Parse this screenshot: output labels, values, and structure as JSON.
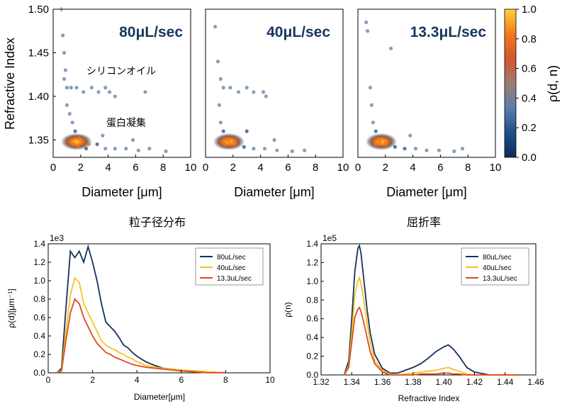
{
  "colorbar": {
    "label": "ρ(d, n)",
    "ticks": [
      "0.0",
      "0.2",
      "0.4",
      "0.6",
      "0.8",
      "1.0"
    ],
    "colors": [
      "#0b2d5b",
      "#1f4f8a",
      "#5d7eaa",
      "#9a7e73",
      "#d4562a",
      "#f27a1c",
      "#ffd13a"
    ]
  },
  "chart_data": [
    {
      "type": "scatter",
      "title": "80μL/sec",
      "xlabel": "Diameter [μm]",
      "ylabel": "Refractive Index",
      "xlim": [
        0,
        10
      ],
      "ylim": [
        1.33,
        1.5
      ],
      "xticks": [
        "0",
        "2",
        "4",
        "6",
        "8",
        "10"
      ],
      "yticks": [
        "1.35",
        "1.40",
        "1.45",
        "1.50"
      ],
      "annotations": [
        "シリコンオイル",
        "蛋白凝集"
      ],
      "points": [
        [
          0.6,
          1.5
        ],
        [
          0.7,
          1.47
        ],
        [
          0.8,
          1.45
        ],
        [
          0.9,
          1.43
        ],
        [
          0.8,
          1.42
        ],
        [
          1.0,
          1.41
        ],
        [
          1.3,
          1.41
        ],
        [
          1.7,
          1.41
        ],
        [
          2.2,
          1.405
        ],
        [
          2.8,
          1.41
        ],
        [
          3.3,
          1.405
        ],
        [
          3.8,
          1.41
        ],
        [
          4.1,
          1.405
        ],
        [
          4.5,
          1.4
        ],
        [
          6.7,
          1.405
        ],
        [
          1.0,
          1.39
        ],
        [
          1.2,
          1.38
        ],
        [
          1.4,
          1.37
        ],
        [
          1.6,
          1.36
        ],
        [
          2.0,
          1.35
        ],
        [
          2.6,
          1.345
        ],
        [
          3.2,
          1.345
        ],
        [
          3.8,
          1.34
        ],
        [
          4.5,
          1.34
        ],
        [
          5.3,
          1.34
        ],
        [
          6.2,
          1.338
        ],
        [
          7.0,
          1.34
        ],
        [
          8.2,
          1.337
        ],
        [
          5.8,
          1.35
        ],
        [
          3.6,
          1.355
        ],
        [
          1.5,
          1.345
        ],
        [
          1.8,
          1.343
        ],
        [
          2.4,
          1.34
        ],
        [
          1.9,
          1.352
        ]
      ]
    },
    {
      "type": "scatter",
      "title": "40μL/sec",
      "xlabel": "Diameter [μm]",
      "xlim": [
        0,
        10
      ],
      "ylim": [
        1.33,
        1.5
      ],
      "xticks": [
        "0",
        "2",
        "4",
        "6",
        "8",
        "10"
      ],
      "points": [
        [
          0.7,
          1.48
        ],
        [
          0.9,
          1.44
        ],
        [
          1.1,
          1.42
        ],
        [
          1.3,
          1.41
        ],
        [
          1.8,
          1.41
        ],
        [
          2.4,
          1.405
        ],
        [
          3.0,
          1.41
        ],
        [
          3.5,
          1.405
        ],
        [
          4.2,
          1.405
        ],
        [
          4.4,
          1.4
        ],
        [
          1.0,
          1.39
        ],
        [
          1.1,
          1.37
        ],
        [
          1.3,
          1.36
        ],
        [
          1.6,
          1.35
        ],
        [
          2.1,
          1.345
        ],
        [
          2.8,
          1.342
        ],
        [
          3.5,
          1.34
        ],
        [
          4.3,
          1.34
        ],
        [
          5.2,
          1.338
        ],
        [
          6.3,
          1.337
        ],
        [
          7.2,
          1.338
        ],
        [
          5.0,
          1.35
        ],
        [
          3.0,
          1.36
        ],
        [
          1.4,
          1.345
        ],
        [
          1.7,
          1.348
        ]
      ]
    },
    {
      "type": "scatter",
      "title": "13.3μL/sec",
      "xlabel": "Diameter [μm]",
      "xlim": [
        0,
        10
      ],
      "ylim": [
        1.33,
        1.5
      ],
      "xticks": [
        "0",
        "2",
        "4",
        "6",
        "8",
        "10"
      ],
      "points": [
        [
          0.6,
          1.485
        ],
        [
          0.7,
          1.475
        ],
        [
          2.4,
          1.455
        ],
        [
          0.9,
          1.41
        ],
        [
          1.0,
          1.39
        ],
        [
          1.1,
          1.37
        ],
        [
          1.3,
          1.36
        ],
        [
          1.6,
          1.35
        ],
        [
          2.0,
          1.345
        ],
        [
          2.7,
          1.342
        ],
        [
          3.4,
          1.34
        ],
        [
          4.2,
          1.34
        ],
        [
          5.0,
          1.338
        ],
        [
          5.9,
          1.338
        ],
        [
          7.0,
          1.337
        ],
        [
          7.6,
          1.34
        ],
        [
          3.8,
          1.355
        ],
        [
          1.3,
          1.345
        ],
        [
          1.6,
          1.347
        ]
      ]
    },
    {
      "type": "line",
      "title": "粒子径分布",
      "xlabel": "Diameter[μm]",
      "ylabel": "ρ(d)[μm⁻¹]",
      "scale_note": "1e3",
      "xlim": [
        0,
        10
      ],
      "ylim": [
        0,
        1.4
      ],
      "xticks": [
        "0",
        "2",
        "4",
        "6",
        "8",
        "10"
      ],
      "yticks": [
        "0.0",
        "0.2",
        "0.4",
        "0.6",
        "0.8",
        "1.0",
        "1.2",
        "1.4"
      ],
      "x": [
        0.4,
        0.6,
        0.8,
        1.0,
        1.2,
        1.4,
        1.6,
        1.8,
        2.0,
        2.2,
        2.4,
        2.6,
        2.8,
        3.0,
        3.2,
        3.4,
        3.6,
        3.8,
        4.0,
        4.4,
        4.8,
        5.2,
        5.6,
        6.0,
        6.6,
        7.2,
        8.0
      ],
      "series": [
        {
          "name": "80uL/sec",
          "color": "#14305f",
          "values": [
            0.0,
            0.05,
            0.7,
            1.32,
            1.25,
            1.32,
            1.2,
            1.37,
            1.2,
            1.0,
            0.75,
            0.55,
            0.5,
            0.45,
            0.38,
            0.3,
            0.27,
            0.22,
            0.18,
            0.12,
            0.08,
            0.05,
            0.04,
            0.03,
            0.02,
            0.01,
            0.0
          ]
        },
        {
          "name": "40uL/sec",
          "color": "#f5c21b",
          "values": [
            0.0,
            0.03,
            0.45,
            0.85,
            1.03,
            0.98,
            0.75,
            0.65,
            0.55,
            0.45,
            0.35,
            0.3,
            0.27,
            0.25,
            0.22,
            0.2,
            0.17,
            0.15,
            0.12,
            0.08,
            0.06,
            0.05,
            0.04,
            0.03,
            0.02,
            0.01,
            0.0
          ]
        },
        {
          "name": "13.3uL/sec",
          "color": "#de4a1f",
          "values": [
            0.0,
            0.02,
            0.35,
            0.65,
            0.8,
            0.75,
            0.6,
            0.5,
            0.4,
            0.32,
            0.27,
            0.22,
            0.2,
            0.17,
            0.15,
            0.13,
            0.11,
            0.09,
            0.08,
            0.06,
            0.05,
            0.04,
            0.03,
            0.02,
            0.01,
            0.0,
            0.0
          ]
        }
      ]
    },
    {
      "type": "line",
      "title": "屈折率",
      "xlabel": "Refractive Index",
      "ylabel": "ρ(n)",
      "scale_note": "1e5",
      "xlim": [
        1.32,
        1.46
      ],
      "ylim": [
        0,
        1.4
      ],
      "xticks": [
        "1.32",
        "1.34",
        "1.36",
        "1.38",
        "1.40",
        "1.42",
        "1.44",
        "1.46"
      ],
      "yticks": [
        "0.0",
        "0.2",
        "0.4",
        "0.6",
        "0.8",
        "1.0",
        "1.2",
        "1.4"
      ],
      "x": [
        1.335,
        1.338,
        1.34,
        1.342,
        1.344,
        1.345,
        1.346,
        1.348,
        1.35,
        1.352,
        1.355,
        1.36,
        1.365,
        1.37,
        1.375,
        1.38,
        1.385,
        1.39,
        1.395,
        1.4,
        1.403,
        1.406,
        1.41,
        1.415,
        1.42,
        1.43,
        1.44,
        1.45
      ],
      "series": [
        {
          "name": "80uL/sec",
          "color": "#14305f",
          "values": [
            0.0,
            0.15,
            0.6,
            1.1,
            1.35,
            1.38,
            1.3,
            1.0,
            0.7,
            0.45,
            0.22,
            0.07,
            0.02,
            0.02,
            0.05,
            0.08,
            0.12,
            0.18,
            0.25,
            0.3,
            0.32,
            0.28,
            0.2,
            0.08,
            0.03,
            0.0,
            0.0,
            0.0
          ]
        },
        {
          "name": "40uL/sec",
          "color": "#f5c21b",
          "values": [
            0.0,
            0.1,
            0.45,
            0.85,
            1.0,
            1.04,
            0.98,
            0.78,
            0.55,
            0.35,
            0.15,
            0.05,
            0.01,
            0.0,
            0.01,
            0.02,
            0.03,
            0.04,
            0.05,
            0.07,
            0.08,
            0.06,
            0.04,
            0.01,
            0.0,
            0.0,
            0.0,
            0.0
          ]
        },
        {
          "name": "13.3uL/sec",
          "color": "#de4a1f",
          "values": [
            0.0,
            0.08,
            0.35,
            0.62,
            0.7,
            0.72,
            0.68,
            0.55,
            0.4,
            0.25,
            0.12,
            0.03,
            0.0,
            0.0,
            0.0,
            0.0,
            0.01,
            0.01,
            0.01,
            0.02,
            0.02,
            0.01,
            0.01,
            0.0,
            0.0,
            0.0,
            0.0,
            0.0
          ]
        }
      ]
    }
  ]
}
